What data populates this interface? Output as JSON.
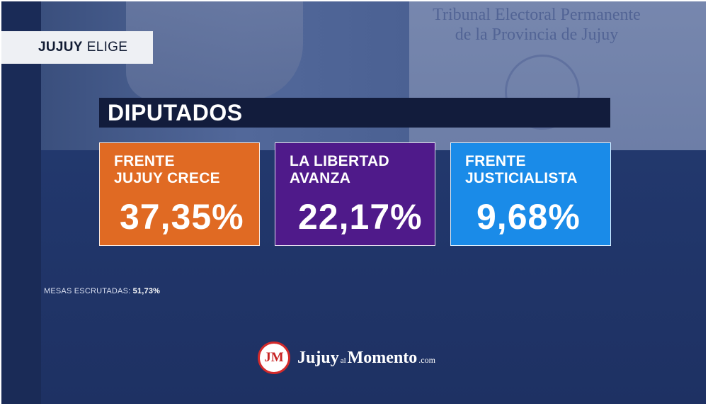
{
  "background": {
    "photo_text": "Tribunal Electoral Permanente\nde la Provincia de Jujuy"
  },
  "brand_tag": {
    "bold": "JUJUY",
    "regular": "ELIGE"
  },
  "section": {
    "title": "DIPUTADOS"
  },
  "results": [
    {
      "party": "FRENTE\nJUJUY CRECE",
      "percent": "37,35%",
      "color": "#e06a23"
    },
    {
      "party": "LA LIBERTAD\nAVANZA",
      "percent": "22,17%",
      "color": "#4f1a8a"
    },
    {
      "party": "FRENTE\nJUSTICIALISTA",
      "percent": "9,68%",
      "color": "#1a8be8"
    }
  ],
  "mesas": {
    "label": "MESAS ESCRUTADAS:",
    "value": "51,73%"
  },
  "logo": {
    "badge": "JM",
    "word1": "Jujuy",
    "word_small": "al",
    "word2": "Momento",
    "suffix": ".com"
  }
}
